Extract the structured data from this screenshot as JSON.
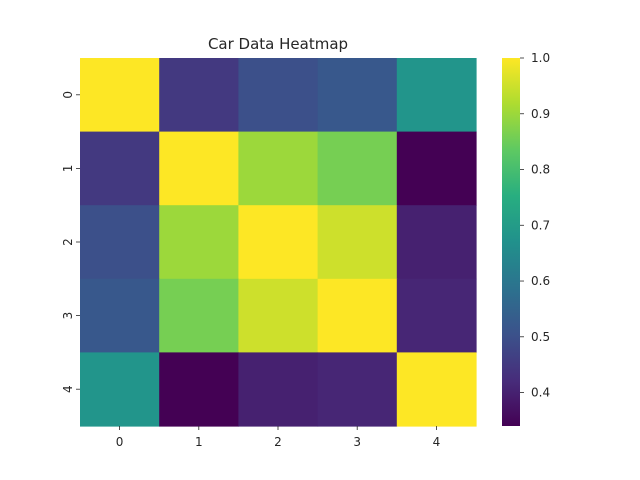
{
  "chart_data": {
    "type": "heatmap",
    "title": "Car Data Heatmap",
    "xlabel": "",
    "ylabel": "",
    "x_categories": [
      "0",
      "1",
      "2",
      "3",
      "4"
    ],
    "y_categories": [
      "0",
      "1",
      "2",
      "3",
      "4"
    ],
    "values": [
      [
        1.0,
        0.45,
        0.5,
        0.52,
        0.68
      ],
      [
        0.45,
        1.0,
        0.9,
        0.86,
        0.34
      ],
      [
        0.5,
        0.9,
        1.0,
        0.95,
        0.4
      ],
      [
        0.52,
        0.86,
        0.95,
        1.0,
        0.41
      ],
      [
        0.68,
        0.34,
        0.4,
        0.41,
        1.0
      ]
    ],
    "colorbar": {
      "colormap": "viridis",
      "vmin": 0.34,
      "vmax": 1.0,
      "ticks": [
        0.4,
        0.5,
        0.6,
        0.7,
        0.8,
        0.9,
        1.0
      ],
      "tick_labels": [
        "0.4",
        "0.5",
        "0.6",
        "0.7",
        "0.8",
        "0.9",
        "1.0"
      ]
    },
    "grid": false,
    "annotations": false
  }
}
